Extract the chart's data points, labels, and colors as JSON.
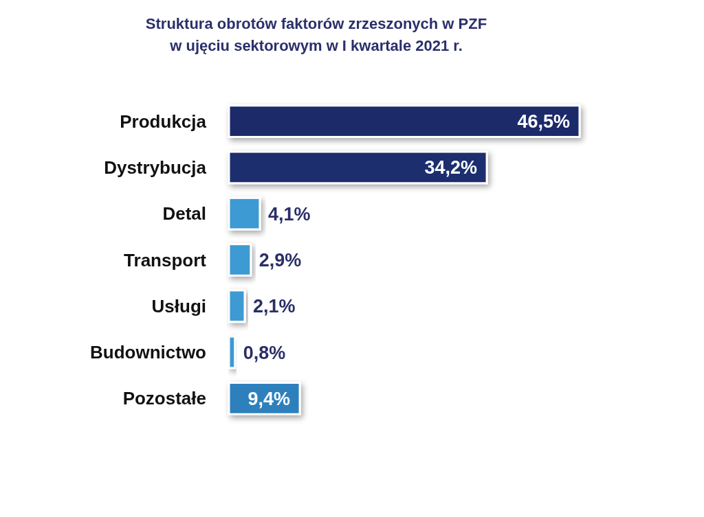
{
  "chart_data": {
    "type": "bar",
    "orientation": "horizontal",
    "title": "Struktura obrotów faktorów zrzeszonych w PZF\nw ujęciu sektorowym w I kwartale 2021 r.",
    "categories": [
      "Produkcja",
      "Dystrybucja",
      "Detal",
      "Transport",
      "Usługi",
      "Budownictwo",
      "Pozostałe"
    ],
    "values": [
      46.5,
      34.2,
      4.1,
      2.9,
      2.1,
      0.8,
      9.4
    ],
    "colors": [
      "#1e2c6a",
      "#1f2f6e",
      "#3d9ad2",
      "#3d9ad2",
      "#3d9ad2",
      "#3d9ad2",
      "#2f80bd"
    ],
    "value_labels": [
      "46,5%",
      "34,2%",
      "4,1%",
      "2,9%",
      "2,1%",
      "0,8%",
      "9,4%"
    ]
  }
}
